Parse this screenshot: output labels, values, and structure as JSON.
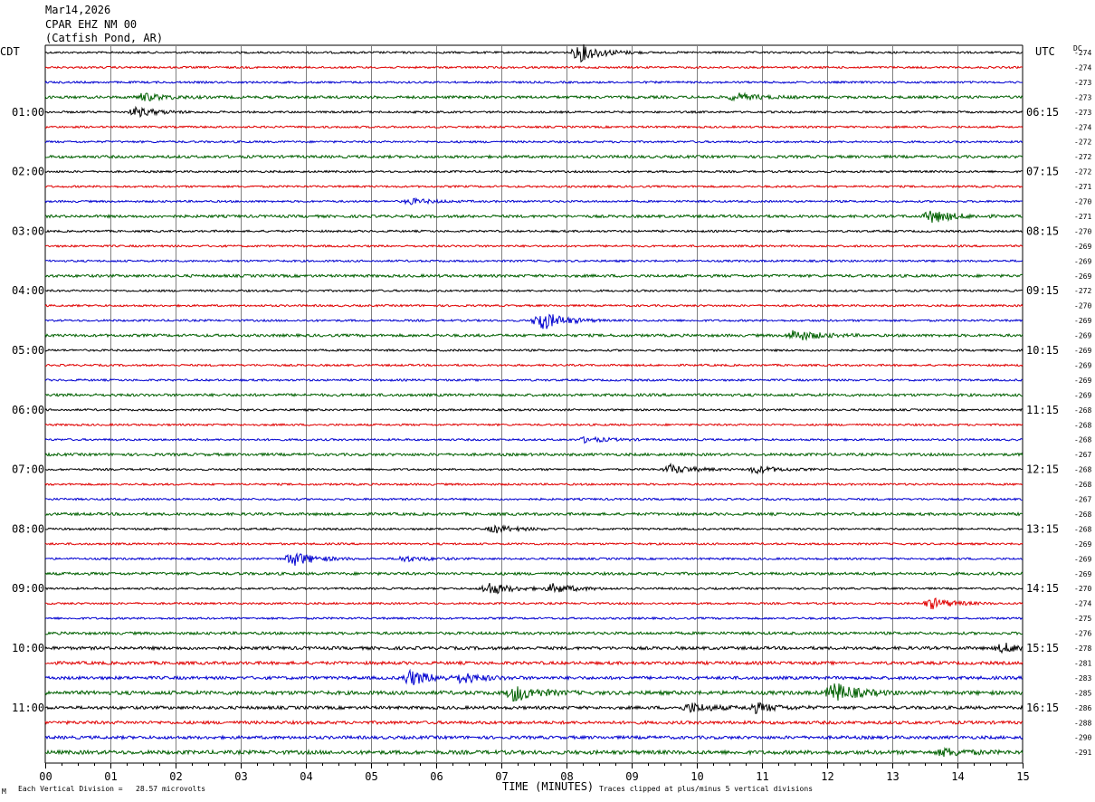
{
  "header": {
    "date": "Mar14,2026",
    "station": "CPAR EHZ NM 00",
    "location": "(Catfish Pond, AR)"
  },
  "axis_labels": {
    "left_timezone": "CDT",
    "right_timezone": "UTC",
    "dc_label": "DC",
    "x_title": "TIME (MINUTES)",
    "footer_left": "Each Vertical Division =   28.57 microvolts",
    "footer_right": "Traces clipped at plus/minus 5 vertical divisions",
    "corner_mark": "M"
  },
  "colors": {
    "trace_cycle": [
      "#000000",
      "#e00000",
      "#0000d0",
      "#006000"
    ],
    "grid": "#808080"
  },
  "chart_data": {
    "type": "line",
    "title": "",
    "xlabel": "TIME (MINUTES)",
    "xlim": [
      0,
      15
    ],
    "x_ticks": [
      "00",
      "01",
      "02",
      "03",
      "04",
      "05",
      "06",
      "07",
      "08",
      "09",
      "10",
      "11",
      "12",
      "13",
      "14",
      "15"
    ],
    "row_minutes": 15,
    "left_hour_labels": [
      "01:00",
      "02:00",
      "03:00",
      "04:00",
      "05:00",
      "06:00",
      "07:00",
      "08:00",
      "09:00",
      "10:00",
      "11:00"
    ],
    "right_hour_labels": [
      "06:15",
      "07:15",
      "08:15",
      "09:15",
      "10:15",
      "11:15",
      "12:15",
      "13:15",
      "14:15",
      "15:15",
      "16:15"
    ],
    "dc_offsets": [
      -274,
      -274,
      -273,
      -273,
      -273,
      -274,
      -272,
      -272,
      -272,
      -271,
      -270,
      -271,
      -270,
      -269,
      -269,
      -269,
      -272,
      -270,
      -269,
      -269,
      -269,
      -269,
      -269,
      -269,
      -268,
      -268,
      -268,
      -267,
      -268,
      -268,
      -267,
      -268,
      -268,
      -269,
      -269,
      -269,
      -270,
      -274,
      -275,
      -276,
      -278,
      -281,
      -283,
      -285,
      -286,
      -288,
      -290,
      -291
    ],
    "events": [
      {
        "row": 0,
        "minute": 8.2,
        "amplitude": 10
      },
      {
        "row": 3,
        "minute": 1.5,
        "amplitude": 4
      },
      {
        "row": 3,
        "minute": 10.6,
        "amplitude": 4
      },
      {
        "row": 4,
        "minute": 1.4,
        "amplitude": 5
      },
      {
        "row": 10,
        "minute": 5.6,
        "amplitude": 3
      },
      {
        "row": 11,
        "minute": 13.6,
        "amplitude": 7
      },
      {
        "row": 18,
        "minute": 7.6,
        "amplitude": 11
      },
      {
        "row": 19,
        "minute": 11.5,
        "amplitude": 6
      },
      {
        "row": 26,
        "minute": 8.3,
        "amplitude": 3
      },
      {
        "row": 28,
        "minute": 9.6,
        "amplitude": 5
      },
      {
        "row": 28,
        "minute": 10.9,
        "amplitude": 4
      },
      {
        "row": 32,
        "minute": 6.9,
        "amplitude": 4
      },
      {
        "row": 34,
        "minute": 3.8,
        "amplitude": 8
      },
      {
        "row": 34,
        "minute": 5.5,
        "amplitude": 3
      },
      {
        "row": 36,
        "minute": 6.8,
        "amplitude": 7
      },
      {
        "row": 36,
        "minute": 7.8,
        "amplitude": 5
      },
      {
        "row": 37,
        "minute": 13.6,
        "amplitude": 6
      },
      {
        "row": 40,
        "minute": 14.7,
        "amplitude": 5
      },
      {
        "row": 42,
        "minute": 5.6,
        "amplitude": 8
      },
      {
        "row": 42,
        "minute": 6.4,
        "amplitude": 5
      },
      {
        "row": 43,
        "minute": 7.2,
        "amplitude": 9
      },
      {
        "row": 43,
        "minute": 12.1,
        "amplitude": 11
      },
      {
        "row": 44,
        "minute": 9.9,
        "amplitude": 5
      },
      {
        "row": 44,
        "minute": 10.9,
        "amplitude": 5
      },
      {
        "row": 47,
        "minute": 13.8,
        "amplitude": 4
      }
    ]
  }
}
